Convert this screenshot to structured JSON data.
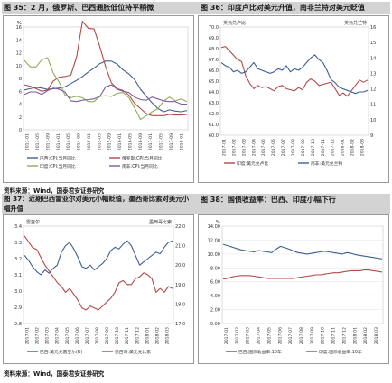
{
  "captions": {
    "fig35": "图 35：2 月，俄罗斯、巴西通胀低位持平稍微",
    "fig36": "图 36：印度卢比对美元升值，南非兰特对美元贬值",
    "fig37": "图 37：近期巴西雷亚尔对美元小幅贬值，墨西哥比索对美元小幅升值",
    "fig38": "图 38：国债收益率：巴西、印度小幅下行"
  },
  "sources": {
    "top": "资料来源：Wind，国泰君安证券研究",
    "bottom": "资料来源：Wind，国泰君安证券研究"
  },
  "chart_data": [
    {
      "id": "fig35",
      "type": "line",
      "ylabel": "%",
      "ylim": [
        0,
        16
      ],
      "yticks": [
        "0",
        "2",
        "4",
        "6",
        "8",
        "10",
        "12",
        "14",
        "16"
      ],
      "xticks": [
        "2013-01",
        "2013-05",
        "2013-09",
        "2014-01",
        "2014-05",
        "2014-09",
        "2015-01",
        "2015-05",
        "2015-09",
        "2016-01",
        "2016-05",
        "2016-09",
        "2017-01",
        "2017-05",
        "2017-09",
        "2018-01"
      ],
      "legend": [
        "巴西:CPI:当月同比",
        "俄罗斯:CPI:当月同比",
        "印度:CPI:当月同比",
        "南非:CPI:当月同比"
      ],
      "colors": [
        "#3f5f93",
        "#b04a47",
        "#8fad55",
        "#7e5ba0"
      ],
      "series": [
        {
          "name": "巴西:CPI:当月同比",
          "color": "#3f5f93",
          "values": [
            6.2,
            6.4,
            6.6,
            6.5,
            6.3,
            6.4,
            6.5,
            6.7,
            7.2,
            7.7,
            8.3,
            9.0,
            9.6,
            10.3,
            10.7,
            10.7,
            10.2,
            9.3,
            8.7,
            7.8,
            6.3,
            5.2,
            4.2,
            3.3,
            2.8,
            3.1,
            2.9,
            2.8,
            3.0
          ]
        },
        {
          "name": "俄罗斯:CPI:当月同比",
          "color": "#b04a47",
          "values": [
            7.0,
            6.8,
            6.4,
            6.0,
            6.2,
            7.6,
            8.2,
            8.3,
            8.5,
            11.4,
            16.9,
            15.8,
            15.7,
            12.9,
            9.8,
            7.3,
            6.4,
            6.1,
            5.4,
            4.1,
            3.3,
            2.5,
            2.2,
            2.2,
            2.2,
            2.4,
            2.3,
            2.3,
            2.4
          ]
        },
        {
          "name": "印度:CPI:当月同比",
          "color": "#8fad55",
          "values": [
            10.8,
            9.8,
            9.8,
            10.9,
            11.2,
            8.8,
            7.4,
            5.4,
            5.0,
            5.2,
            5.0,
            4.4,
            4.4,
            5.2,
            5.3,
            5.2,
            5.7,
            5.8,
            5.0,
            3.4,
            1.6,
            2.2,
            2.8,
            3.3,
            4.5,
            5.1,
            4.5,
            4.8,
            4.4
          ]
        },
        {
          "name": "南非:CPI:当月同比",
          "color": "#7e5ba0",
          "values": [
            5.5,
            5.9,
            5.9,
            5.5,
            6.1,
            6.5,
            6.3,
            5.9,
            4.5,
            4.4,
            4.6,
            4.7,
            4.8,
            5.2,
            6.7,
            7.0,
            6.3,
            6.0,
            5.8,
            5.1,
            4.7,
            4.6,
            5.1,
            4.8,
            4.5,
            4.4,
            4.4,
            4.0,
            4.0
          ]
        }
      ]
    },
    {
      "id": "fig36",
      "type": "line",
      "ylim_left": [
        60,
        70
      ],
      "ylim_right": [
        9,
        16
      ],
      "yticks_left": [
        "60.0",
        "61.0",
        "62.0",
        "63.0",
        "64.0",
        "65.0",
        "66.0",
        "67.0",
        "68.0",
        "69.0",
        "70.0"
      ],
      "yticks_right": [
        "9",
        "10",
        "11",
        "12",
        "13",
        "14",
        "15",
        "16"
      ],
      "xticks": [
        "2017-01",
        "2017-02",
        "2017-03",
        "2017-04",
        "2017-05",
        "2017-06",
        "2017-07",
        "2017-08",
        "2017-09",
        "2017-10",
        "2017-11",
        "2017-12",
        "2018-01",
        "2018-02",
        "2018-03"
      ],
      "legend": [
        "印度:美元兑卢比",
        "南非:美元兑兰特"
      ],
      "colors": [
        "#b04a47",
        "#3f5f93"
      ],
      "annotations": {
        "left": "美元兑卢比",
        "right": "美元兑兰特"
      },
      "series": [
        {
          "name": "印度:美元兑卢比",
          "axis": "left",
          "color": "#b04a47",
          "values": [
            68.1,
            68.2,
            67.8,
            67.4,
            67.0,
            66.8,
            65.5,
            64.8,
            64.3,
            64.6,
            64.4,
            64.5,
            64.3,
            64.1,
            64.5,
            64.6,
            64.3,
            64.2,
            64.1,
            64.4,
            64.2,
            64.9,
            65.2,
            65.0,
            64.6,
            64.7,
            64.8,
            64.9,
            64.3,
            63.7,
            63.9,
            63.6,
            64.1,
            64.6,
            65.1,
            64.9,
            65.1
          ]
        },
        {
          "name": "南非:美元兑兰特",
          "axis": "right",
          "color": "#3f5f93",
          "values": [
            13.7,
            13.5,
            13.4,
            13.1,
            13.2,
            13.0,
            13.1,
            13.4,
            13.7,
            13.3,
            13.2,
            13.1,
            13.0,
            13.1,
            13.3,
            13.2,
            13.5,
            13.1,
            13.3,
            13.2,
            13.4,
            13.7,
            14.0,
            14.2,
            13.9,
            13.7,
            13.2,
            12.6,
            12.4,
            12.1,
            12.0,
            11.9,
            11.8,
            11.7,
            11.8,
            11.8,
            11.9
          ]
        }
      ]
    },
    {
      "id": "fig37",
      "type": "line",
      "ylim_left": [
        2.8,
        3.4
      ],
      "ylim_right": [
        17.0,
        22.0
      ],
      "yticks_left": [
        "2.8",
        "2.9",
        "3.0",
        "3.1",
        "3.2",
        "3.3",
        "3.4"
      ],
      "yticks_right": [
        "17.0",
        "18.0",
        "19.0",
        "20.0",
        "21.0",
        "22.0"
      ],
      "xticks": [
        "2017-01",
        "2017-02",
        "2017-03",
        "2017-04",
        "2017-05",
        "2017-06",
        "2017-07",
        "2017-08",
        "2017-09",
        "2017-10",
        "2017-11",
        "2017-12",
        "2018-01",
        "2018-02",
        "2018-03"
      ],
      "legend": [
        "巴西:美元兑雷亚尔(R)",
        "墨西哥:美元兑比索"
      ],
      "colors": [
        "#3f5f93",
        "#b04a47"
      ],
      "annotations": {
        "left": "雷亚尔",
        "right": "墨西哥比索"
      },
      "series": [
        {
          "name": "巴西:美元兑雷亚尔(R)",
          "axis": "left",
          "color": "#3f5f93",
          "values": [
            3.22,
            3.19,
            3.15,
            3.12,
            3.1,
            3.13,
            3.11,
            3.14,
            3.16,
            3.24,
            3.28,
            3.3,
            3.26,
            3.21,
            3.15,
            3.14,
            3.16,
            3.13,
            3.15,
            3.17,
            3.2,
            3.25,
            3.27,
            3.26,
            3.29,
            3.31,
            3.28,
            3.22,
            3.16,
            3.18,
            3.2,
            3.22,
            3.24,
            3.23,
            3.27,
            3.3,
            3.31
          ]
        },
        {
          "name": "墨西哥:美元兑比索",
          "axis": "right",
          "color": "#b04a47",
          "values": [
            21.5,
            21.2,
            20.9,
            20.8,
            20.4,
            20.0,
            19.7,
            19.4,
            19.1,
            18.9,
            18.6,
            18.8,
            18.5,
            18.2,
            17.8,
            17.7,
            17.9,
            17.8,
            17.7,
            17.9,
            18.1,
            18.3,
            18.6,
            19.1,
            19.2,
            19.0,
            19.0,
            19.3,
            19.4,
            19.6,
            19.5,
            19.3,
            18.6,
            18.8,
            18.6,
            18.9,
            18.8
          ]
        }
      ]
    },
    {
      "id": "fig38",
      "type": "line",
      "ylabel": "%",
      "ylim": [
        0,
        14
      ],
      "yticks": [
        "0.00",
        "2.00",
        "4.00",
        "6.00",
        "8.00",
        "10.00",
        "12.00",
        "14.00"
      ],
      "xticks": [
        "2017-01",
        "2017-02",
        "2017-03",
        "2017-04",
        "2017-05",
        "2017-06",
        "2017-07",
        "2017-08",
        "2017-09",
        "2017-10",
        "2017-11",
        "2017-12",
        "2018-01",
        "2018-02",
        "2018-03"
      ],
      "legend": [
        "巴西:国债收益率:10年",
        "印度:国债收益率:10年"
      ],
      "colors": [
        "#3f5f93",
        "#b04a47"
      ],
      "series": [
        {
          "name": "巴西:国债收益率:10年",
          "color": "#3f5f93",
          "values": [
            11.4,
            11.2,
            11.0,
            10.8,
            10.6,
            10.5,
            10.4,
            10.3,
            10.5,
            10.4,
            10.3,
            10.2,
            10.7,
            11.1,
            10.9,
            10.7,
            10.4,
            10.2,
            10.1,
            10.0,
            10.1,
            10.2,
            10.3,
            10.4,
            10.3,
            10.2,
            10.1,
            10.0,
            10.2,
            10.1,
            9.9,
            9.8,
            9.7,
            9.6,
            9.5,
            9.4,
            9.3
          ]
        },
        {
          "name": "印度:国债收益率:10年",
          "color": "#b04a47",
          "values": [
            6.4,
            6.5,
            6.7,
            6.8,
            6.9,
            6.9,
            6.9,
            6.8,
            6.7,
            6.6,
            6.5,
            6.5,
            6.5,
            6.5,
            6.5,
            6.5,
            6.5,
            6.6,
            6.7,
            6.8,
            6.9,
            7.0,
            7.0,
            7.1,
            7.2,
            7.3,
            7.3,
            7.4,
            7.5,
            7.6,
            7.6,
            7.6,
            7.7,
            7.7,
            7.6,
            7.5,
            7.4
          ]
        }
      ]
    }
  ]
}
